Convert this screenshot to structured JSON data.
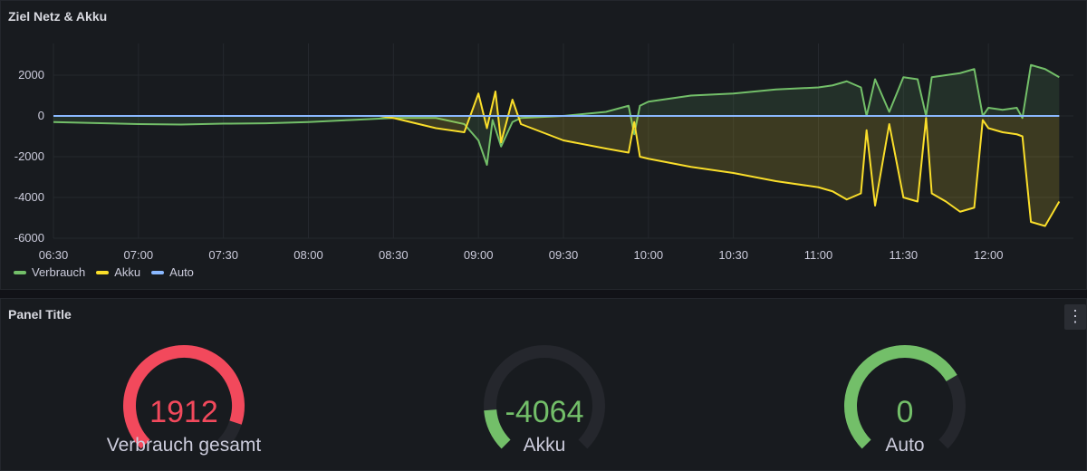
{
  "panels": {
    "top": {
      "title": "Ziel Netz & Akku"
    },
    "bottom": {
      "title": "Panel Title",
      "menu_icon": "vertical-ellipsis-icon",
      "menu_glyph": "⋮"
    }
  },
  "colors": {
    "verbrauch": "#73bf69",
    "akku": "#fade2a",
    "auto": "#8ab8ff",
    "red": "#f2495c",
    "gauge_track": "#25272d"
  },
  "chart_data": {
    "type": "line",
    "y_ticks": [
      "2000",
      "0",
      "-2000",
      "-4000",
      "-6000"
    ],
    "y_tick_values": [
      2000,
      0,
      -2000,
      -4000,
      -6000
    ],
    "ylim": [
      -6000,
      3200
    ],
    "x_ticks": [
      "06:30",
      "07:00",
      "07:30",
      "08:00",
      "08:30",
      "09:00",
      "09:30",
      "10:00",
      "10:30",
      "11:00",
      "11:30",
      "12:00"
    ],
    "xlim": [
      "06:30",
      "12:30"
    ],
    "legend_position": "bottom-left",
    "grid": true,
    "series": [
      {
        "name": "Verbrauch",
        "points": [
          [
            "06:30",
            -300
          ],
          [
            "06:45",
            -350
          ],
          [
            "07:00",
            -400
          ],
          [
            "07:15",
            -420
          ],
          [
            "07:30",
            -380
          ],
          [
            "07:45",
            -360
          ],
          [
            "08:00",
            -300
          ],
          [
            "08:15",
            -200
          ],
          [
            "08:30",
            -100
          ],
          [
            "08:45",
            -100
          ],
          [
            "08:55",
            -400
          ],
          [
            "09:00",
            -1200
          ],
          [
            "09:03",
            -2400
          ],
          [
            "09:05",
            -200
          ],
          [
            "09:08",
            -1500
          ],
          [
            "09:12",
            -300
          ],
          [
            "09:15",
            -100
          ],
          [
            "09:30",
            0
          ],
          [
            "09:45",
            200
          ],
          [
            "09:53",
            500
          ],
          [
            "09:55",
            -900
          ],
          [
            "09:57",
            500
          ],
          [
            "10:00",
            700
          ],
          [
            "10:15",
            1000
          ],
          [
            "10:30",
            1100
          ],
          [
            "10:45",
            1300
          ],
          [
            "11:00",
            1400
          ],
          [
            "11:05",
            1500
          ],
          [
            "11:10",
            1700
          ],
          [
            "11:15",
            1400
          ],
          [
            "11:17",
            0
          ],
          [
            "11:20",
            1800
          ],
          [
            "11:25",
            200
          ],
          [
            "11:30",
            1900
          ],
          [
            "11:35",
            1800
          ],
          [
            "11:38",
            0
          ],
          [
            "11:40",
            1900
          ],
          [
            "11:45",
            2000
          ],
          [
            "11:50",
            2100
          ],
          [
            "11:55",
            2300
          ],
          [
            "11:58",
            0
          ],
          [
            "12:00",
            400
          ],
          [
            "12:05",
            300
          ],
          [
            "12:10",
            400
          ],
          [
            "12:12",
            -100
          ],
          [
            "12:15",
            2500
          ],
          [
            "12:20",
            2300
          ],
          [
            "12:25",
            1900
          ]
        ]
      },
      {
        "name": "Akku",
        "points": [
          [
            "06:30",
            0
          ],
          [
            "08:25",
            0
          ],
          [
            "08:30",
            -100
          ],
          [
            "08:45",
            -600
          ],
          [
            "08:55",
            -800
          ],
          [
            "09:00",
            1100
          ],
          [
            "09:03",
            -600
          ],
          [
            "09:06",
            1200
          ],
          [
            "09:08",
            -1300
          ],
          [
            "09:12",
            800
          ],
          [
            "09:15",
            -400
          ],
          [
            "09:30",
            -1200
          ],
          [
            "09:45",
            -1600
          ],
          [
            "09:53",
            -1800
          ],
          [
            "09:55",
            -300
          ],
          [
            "09:57",
            -2000
          ],
          [
            "10:00",
            -2100
          ],
          [
            "10:15",
            -2500
          ],
          [
            "10:30",
            -2800
          ],
          [
            "10:45",
            -3200
          ],
          [
            "11:00",
            -3500
          ],
          [
            "11:05",
            -3700
          ],
          [
            "11:10",
            -4100
          ],
          [
            "11:15",
            -3800
          ],
          [
            "11:17",
            -700
          ],
          [
            "11:20",
            -4400
          ],
          [
            "11:25",
            -400
          ],
          [
            "11:30",
            -4000
          ],
          [
            "11:35",
            -4200
          ],
          [
            "11:38",
            -100
          ],
          [
            "11:40",
            -3800
          ],
          [
            "11:45",
            -4200
          ],
          [
            "11:50",
            -4700
          ],
          [
            "11:55",
            -4500
          ],
          [
            "11:58",
            -200
          ],
          [
            "12:00",
            -600
          ],
          [
            "12:05",
            -800
          ],
          [
            "12:10",
            -900
          ],
          [
            "12:12",
            -1000
          ],
          [
            "12:15",
            -5200
          ],
          [
            "12:20",
            -5400
          ],
          [
            "12:25",
            -4200
          ]
        ]
      },
      {
        "name": "Auto",
        "points": [
          [
            "06:30",
            0
          ],
          [
            "12:25",
            0
          ]
        ]
      }
    ]
  },
  "gauges": [
    {
      "value": "1912",
      "label": "Verbrauch gesamt",
      "fraction": 0.9,
      "color": "#f2495c"
    },
    {
      "value": "-4064",
      "label": "Akku",
      "fraction": 0.15,
      "color": "#73bf69"
    },
    {
      "value": "0",
      "label": "Auto",
      "fraction": 0.72,
      "color": "#73bf69"
    }
  ]
}
